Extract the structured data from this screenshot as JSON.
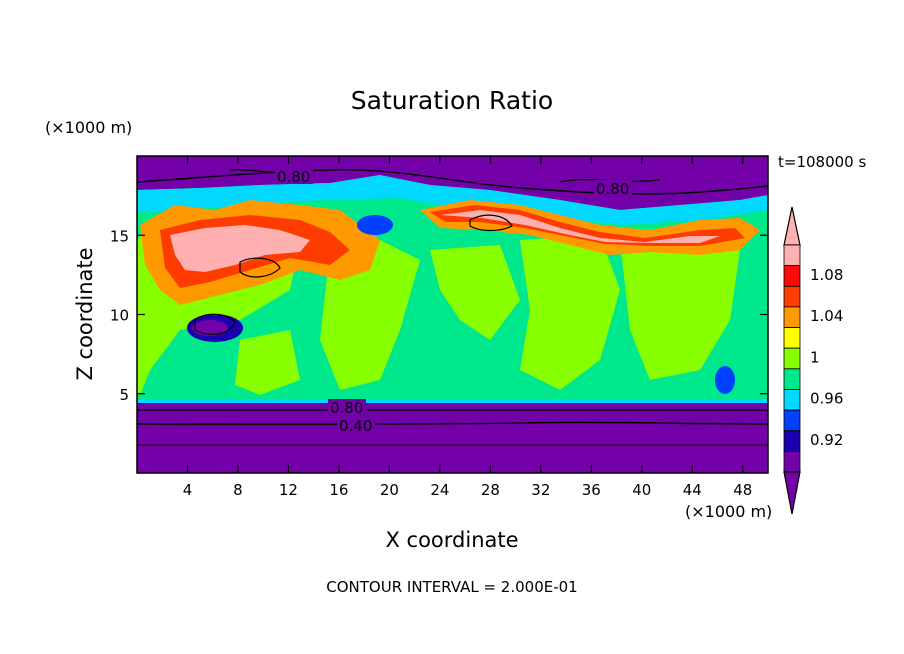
{
  "chart_data": {
    "type": "heatmap",
    "title": "Saturation Ratio",
    "xlabel": "X coordinate",
    "ylabel": "Z coordinate",
    "x_unit_label": "(×1000 m)",
    "y_unit_label": "(×1000 m)",
    "time_label": "t=108000 s",
    "contour_note": "CONTOUR INTERVAL = 2.000E-01",
    "xlim": [
      0,
      50
    ],
    "ylim": [
      0,
      20
    ],
    "x_ticks": [
      "4",
      "8",
      "12",
      "16",
      "20",
      "24",
      "28",
      "32",
      "36",
      "40",
      "44",
      "48"
    ],
    "y_ticks": [
      "5",
      "10",
      "15"
    ],
    "colorbar": {
      "levels": [
        "0.92",
        "0.96",
        "1",
        "1.04",
        "1.08"
      ],
      "colors": [
        "#7300a8",
        "#1a00b0",
        "#0040ff",
        "#00d8ff",
        "#00e88c",
        "#88ff00",
        "#ffff00",
        "#ff9900",
        "#ff3c00",
        "#ff0a0a",
        "#ffb0b0"
      ],
      "under_color": "#7300a8",
      "over_color": "#ffb0b0"
    },
    "contour_labels": [
      "0.80",
      "0.80",
      "0.80",
      "0.40"
    ]
  }
}
